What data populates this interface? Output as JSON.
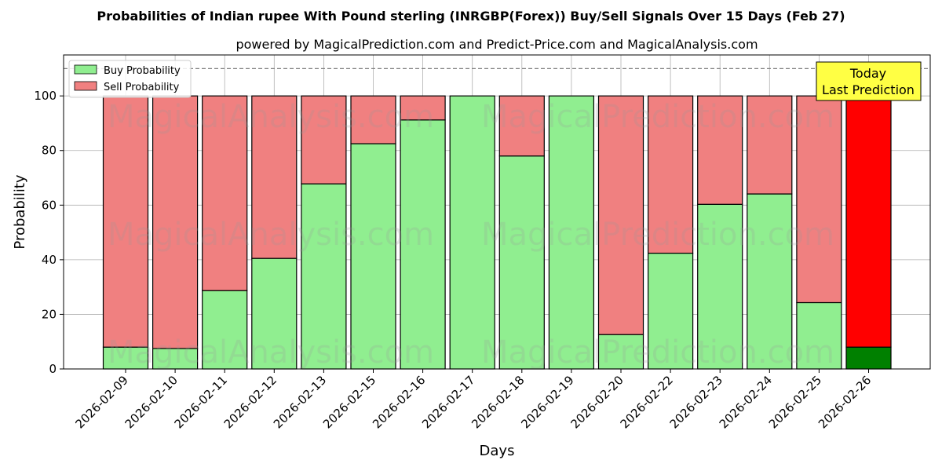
{
  "title": "Probabilities of Indian rupee With Pound sterling (INRGBP(Forex)) Buy/Sell Signals Over 15 Days (Feb 27)",
  "subtitle": "powered by MagicalPrediction.com and Predict-Price.com and MagicalAnalysis.com",
  "watermarks": [
    "MagicalAnalysis.com",
    "MagicalPrediction.com"
  ],
  "today_box": {
    "line1": "Today",
    "line2": "Last Prediction"
  },
  "colors": {
    "buy": "#90ee90",
    "sell": "#f08080",
    "today_buy": "#008000",
    "today_sell": "#ff0000",
    "today_box": "#ffff44"
  },
  "chart_data": {
    "type": "bar",
    "stacked": true,
    "xlabel": "Days",
    "ylabel": "Probability",
    "ylim": [
      0,
      115
    ],
    "yticks": [
      0,
      20,
      40,
      60,
      80,
      100
    ],
    "reference_line": 110,
    "grid": true,
    "legend_position": "top-left",
    "categories": [
      "2026-02-09",
      "2026-02-10",
      "2026-02-11",
      "2026-02-12",
      "2026-02-13",
      "2026-02-15",
      "2026-02-16",
      "2026-02-17",
      "2026-02-18",
      "2026-02-19",
      "2026-02-20",
      "2026-02-22",
      "2026-02-23",
      "2026-02-24",
      "2026-02-25",
      "2026-02-26"
    ],
    "series": [
      {
        "name": "Buy Probability",
        "values": [
          8,
          7.5,
          28.7,
          40.5,
          67.8,
          82.5,
          91.2,
          100,
          78,
          100,
          12.6,
          42.4,
          60.3,
          64.1,
          24.3,
          8
        ]
      },
      {
        "name": "Sell Probability",
        "values": [
          92,
          92.5,
          71.3,
          59.5,
          32.2,
          17.5,
          8.8,
          0,
          22,
          0,
          87.4,
          57.6,
          39.7,
          35.9,
          75.7,
          92
        ]
      }
    ]
  }
}
